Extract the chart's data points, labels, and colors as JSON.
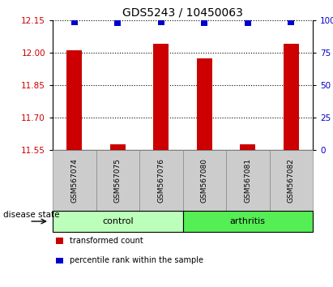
{
  "title": "GDS5243 / 10450063",
  "samples": [
    "GSM567074",
    "GSM567075",
    "GSM567076",
    "GSM567080",
    "GSM567081",
    "GSM567082"
  ],
  "transformed_count": [
    12.01,
    11.575,
    12.04,
    11.975,
    11.575,
    12.04
  ],
  "percentile_rank": [
    99,
    98,
    99,
    98,
    98,
    99
  ],
  "ylim_left": [
    11.55,
    12.15
  ],
  "yticks_left": [
    11.55,
    11.7,
    11.85,
    12.0,
    12.15
  ],
  "ylim_right": [
    0,
    100
  ],
  "yticks_right": [
    0,
    25,
    50,
    75,
    100
  ],
  "ytick_labels_right": [
    "0",
    "25",
    "50",
    "75",
    "100%"
  ],
  "bar_color": "#cc0000",
  "dot_color": "#0000cc",
  "groups": [
    {
      "label": "control",
      "indices": [
        0,
        1,
        2
      ],
      "color": "#bbffbb"
    },
    {
      "label": "arthritis",
      "indices": [
        3,
        4,
        5
      ],
      "color": "#55ee55"
    }
  ],
  "group_label": "disease state",
  "legend_items": [
    {
      "label": "transformed count",
      "color": "#cc0000"
    },
    {
      "label": "percentile rank within the sample",
      "color": "#0000cc"
    }
  ],
  "title_fontsize": 10,
  "tick_fontsize": 7.5,
  "bar_width": 0.35,
  "dot_size": 28,
  "sample_box_color": "#cccccc",
  "sample_box_edge": "#888888"
}
